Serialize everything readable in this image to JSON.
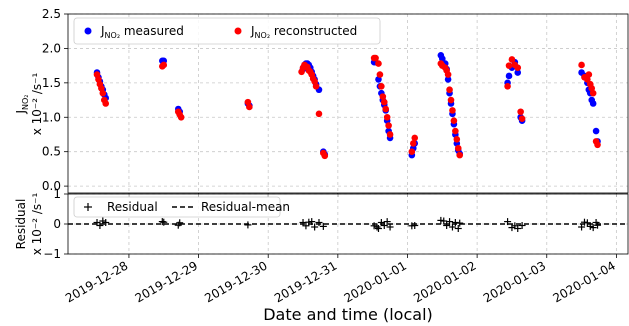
{
  "figure": {
    "xlabel": "Date and time (local)"
  },
  "chart_data": [
    {
      "type": "scatter",
      "ylabel_line1": "J",
      "ylabel_sub": "NO₂",
      "ylabel_line2": "x 10⁻² /s⁻¹",
      "xlim": [
        "2019-12-27 03:00",
        "2020-01-04 04:00"
      ],
      "ylim": [
        -0.1,
        2.5
      ],
      "yticks": [
        "0.0",
        "0.5",
        "1.0",
        "1.5",
        "2.0",
        "2.5"
      ],
      "grid": true,
      "legend_placement": "top-left",
      "series": [
        {
          "name": "J",
          "name_sub": "NO₂",
          "name_suffix": " measured",
          "color": "#0000ff",
          "x": [
            "2019-12-27 13:00",
            "2019-12-27 13:30",
            "2019-12-27 14:00",
            "2019-12-27 14:30",
            "2019-12-27 15:00",
            "2019-12-27 15:30",
            "2019-12-27 16:00",
            "2019-12-28 11:30",
            "2019-12-28 12:00",
            "2019-12-28 17:00",
            "2019-12-28 17:30",
            "2019-12-29 17:00",
            "2019-12-29 17:30",
            "2019-12-30 12:00",
            "2019-12-30 12:30",
            "2019-12-30 13:00",
            "2019-12-30 13:30",
            "2019-12-30 14:00",
            "2019-12-30 14:30",
            "2019-12-30 15:00",
            "2019-12-30 15:30",
            "2019-12-30 16:00",
            "2019-12-30 16:30",
            "2019-12-30 17:30",
            "2019-12-30 19:00",
            "2019-12-30 19:30",
            "2019-12-31 12:30",
            "2019-12-31 13:00",
            "2019-12-31 14:00",
            "2019-12-31 14:30",
            "2019-12-31 15:00",
            "2019-12-31 15:30",
            "2019-12-31 16:00",
            "2019-12-31 16:30",
            "2019-12-31 17:00",
            "2019-12-31 17:30",
            "2019-12-31 18:00",
            "2020-01-01 01:30",
            "2020-01-01 02:00",
            "2020-01-01 02:30",
            "2020-01-01 11:30",
            "2020-01-01 12:00",
            "2020-01-01 13:00",
            "2020-01-01 13:30",
            "2020-01-01 14:00",
            "2020-01-01 14:30",
            "2020-01-01 15:00",
            "2020-01-01 15:30",
            "2020-01-01 16:00",
            "2020-01-01 16:30",
            "2020-01-01 17:00",
            "2020-01-01 17:30",
            "2020-01-01 18:00",
            "2020-01-02 10:30",
            "2020-01-02 11:00",
            "2020-01-02 12:00",
            "2020-01-02 13:00",
            "2020-01-02 14:00",
            "2020-01-02 15:00",
            "2020-01-02 15:30",
            "2020-01-03 12:00",
            "2020-01-03 13:00",
            "2020-01-03 14:00",
            "2020-01-03 14:30",
            "2020-01-03 15:00",
            "2020-01-03 15:30",
            "2020-01-03 16:00",
            "2020-01-03 17:00",
            "2020-01-03 17:30"
          ],
          "y": [
            1.65,
            1.58,
            1.52,
            1.45,
            1.4,
            1.33,
            1.28,
            1.82,
            1.82,
            1.12,
            1.08,
            1.2,
            1.17,
            1.7,
            1.76,
            1.78,
            1.78,
            1.76,
            1.72,
            1.66,
            1.6,
            1.55,
            1.48,
            1.4,
            0.5,
            0.46,
            1.8,
            1.8,
            1.55,
            1.45,
            1.35,
            1.25,
            1.18,
            1.1,
            0.95,
            0.8,
            0.7,
            0.45,
            0.55,
            0.62,
            1.9,
            1.85,
            1.78,
            1.7,
            1.55,
            1.35,
            1.2,
            1.05,
            0.9,
            0.75,
            0.62,
            0.52,
            0.47,
            1.5,
            1.6,
            1.72,
            1.8,
            1.65,
            1.0,
            0.95,
            1.65,
            1.6,
            1.5,
            1.4,
            1.35,
            1.25,
            1.2,
            0.8,
            0.65
          ]
        },
        {
          "name": "J",
          "name_sub": "NO₂",
          "name_suffix": " reconstructed",
          "color": "#ff0000",
          "x": [
            "2019-12-27 13:00",
            "2019-12-27 13:30",
            "2019-12-27 14:00",
            "2019-12-27 14:30",
            "2019-12-27 15:00",
            "2019-12-27 15:30",
            "2019-12-27 16:00",
            "2019-12-28 11:30",
            "2019-12-28 12:00",
            "2019-12-28 17:00",
            "2019-12-28 17:30",
            "2019-12-28 18:00",
            "2019-12-29 17:00",
            "2019-12-29 17:30",
            "2019-12-30 11:30",
            "2019-12-30 12:00",
            "2019-12-30 12:30",
            "2019-12-30 13:00",
            "2019-12-30 13:30",
            "2019-12-30 14:00",
            "2019-12-30 14:30",
            "2019-12-30 15:00",
            "2019-12-30 15:30",
            "2019-12-30 16:00",
            "2019-12-30 16:30",
            "2019-12-30 17:30",
            "2019-12-30 19:00",
            "2019-12-30 19:30",
            "2019-12-31 12:30",
            "2019-12-31 13:00",
            "2019-12-31 14:00",
            "2019-12-31 14:30",
            "2019-12-31 15:00",
            "2019-12-31 15:30",
            "2019-12-31 16:00",
            "2019-12-31 16:30",
            "2019-12-31 17:00",
            "2019-12-31 17:30",
            "2019-12-31 18:00",
            "2020-01-01 01:30",
            "2020-01-01 02:00",
            "2020-01-01 02:30",
            "2020-01-01 11:30",
            "2020-01-01 12:00",
            "2020-01-01 13:00",
            "2020-01-01 13:30",
            "2020-01-01 14:00",
            "2020-01-01 14:30",
            "2020-01-01 15:00",
            "2020-01-01 15:30",
            "2020-01-01 16:00",
            "2020-01-01 16:30",
            "2020-01-01 17:00",
            "2020-01-01 17:30",
            "2020-01-01 18:00",
            "2020-01-02 10:30",
            "2020-01-02 11:00",
            "2020-01-02 12:00",
            "2020-01-02 13:00",
            "2020-01-02 14:00",
            "2020-01-02 15:00",
            "2020-01-02 15:30",
            "2020-01-03 12:00",
            "2020-01-03 13:00",
            "2020-01-03 14:00",
            "2020-01-03 14:30",
            "2020-01-03 15:00",
            "2020-01-03 15:30",
            "2020-01-03 16:00",
            "2020-01-03 17:00",
            "2020-01-03 17:30"
          ],
          "y": [
            1.62,
            1.55,
            1.48,
            1.42,
            1.35,
            1.25,
            1.2,
            1.74,
            1.76,
            1.08,
            1.04,
            1.0,
            1.22,
            1.15,
            1.66,
            1.72,
            1.76,
            1.74,
            1.73,
            1.68,
            1.66,
            1.62,
            1.56,
            1.52,
            1.45,
            1.05,
            0.48,
            0.44,
            1.86,
            1.86,
            1.78,
            1.62,
            1.45,
            1.3,
            1.22,
            1.12,
            1.0,
            0.88,
            0.75,
            0.5,
            0.62,
            0.7,
            1.78,
            1.75,
            1.72,
            1.68,
            1.62,
            1.4,
            1.25,
            1.1,
            0.95,
            0.8,
            0.68,
            0.55,
            0.45,
            1.45,
            1.75,
            1.84,
            1.76,
            1.72,
            1.08,
            0.98,
            1.76,
            1.58,
            1.55,
            1.62,
            1.48,
            1.42,
            1.35,
            0.65,
            0.6
          ]
        }
      ]
    },
    {
      "type": "scatter",
      "ylabel_line1": "Residual",
      "ylabel_line2": "x 10⁻² /s⁻¹",
      "xlim": [
        "2019-12-27 03:00",
        "2020-01-04 04:00"
      ],
      "ylim": [
        -1,
        1
      ],
      "yticks": [
        "−1",
        "0",
        "1"
      ],
      "xticks": [
        "2019-12-28",
        "2019-12-29",
        "2019-12-30",
        "2019-12-31",
        "2020-01-01",
        "2020-01-02",
        "2020-01-03",
        "2020-01-04"
      ],
      "grid": true,
      "legend_placement": "top-left",
      "residual_mean": 0.0,
      "series": [
        {
          "name": "Residual",
          "marker": "+",
          "color": "#000000",
          "x": [
            "2019-12-27 13:00",
            "2019-12-27 14:00",
            "2019-12-27 15:00",
            "2019-12-27 16:00",
            "2019-12-28 11:30",
            "2019-12-28 12:00",
            "2019-12-28 17:00",
            "2019-12-28 17:30",
            "2019-12-29 17:00",
            "2019-12-30 12:00",
            "2019-12-30 13:00",
            "2019-12-30 14:00",
            "2019-12-30 15:00",
            "2019-12-30 16:00",
            "2019-12-30 17:30",
            "2019-12-30 19:00",
            "2019-12-31 12:30",
            "2019-12-31 13:30",
            "2019-12-31 14:00",
            "2019-12-31 15:00",
            "2019-12-31 16:00",
            "2019-12-31 17:00",
            "2019-12-31 18:00",
            "2020-01-01 01:30",
            "2020-01-01 02:30",
            "2020-01-01 11:30",
            "2020-01-01 12:30",
            "2020-01-01 13:30",
            "2020-01-01 14:30",
            "2020-01-01 15:30",
            "2020-01-01 16:30",
            "2020-01-01 17:30",
            "2020-01-01 18:00",
            "2020-01-02 10:30",
            "2020-01-02 12:00",
            "2020-01-02 13:00",
            "2020-01-02 14:00",
            "2020-01-02 15:30",
            "2020-01-03 12:00",
            "2020-01-03 13:00",
            "2020-01-03 14:00",
            "2020-01-03 15:00",
            "2020-01-03 16:00",
            "2020-01-03 17:00",
            "2020-01-03 17:30"
          ],
          "y": [
            0.05,
            -0.05,
            0.1,
            0.05,
            0.08,
            0.06,
            -0.04,
            0.04,
            -0.03,
            0.05,
            -0.06,
            0.06,
            0.08,
            -0.1,
            0.05,
            -0.08,
            -0.06,
            -0.1,
            -0.15,
            0.05,
            -0.05,
            0.08,
            -0.1,
            -0.06,
            -0.05,
            0.12,
            0.1,
            -0.05,
            0.08,
            -0.1,
            0.05,
            -0.15,
            0.03,
            0.08,
            -0.12,
            -0.06,
            -0.15,
            -0.05,
            -0.1,
            0.06,
            0.04,
            -0.08,
            -0.12,
            0.05,
            -0.04
          ]
        }
      ],
      "mean_series_name": "Residual-mean"
    }
  ]
}
